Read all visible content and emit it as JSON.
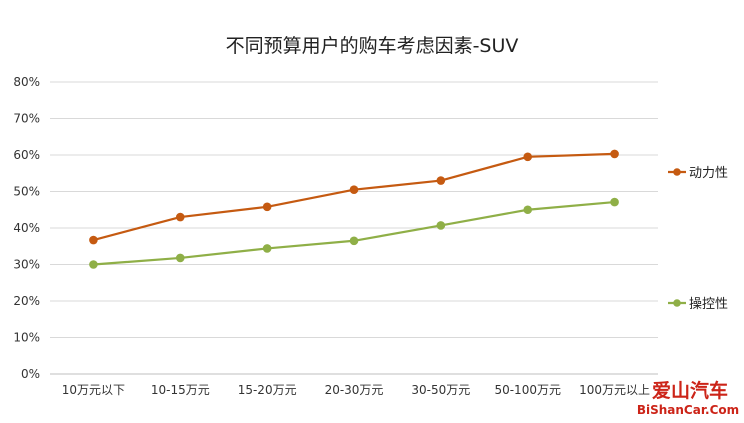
{
  "chart_data": {
    "type": "line",
    "title": "不同预算用户的购车考虑因素-SUV",
    "xlabel": "",
    "ylabel": "",
    "categories": [
      "10万元以下",
      "10-15万元",
      "15-20万元",
      "20-30万元",
      "30-50万元",
      "50-100万元",
      "100万元以上"
    ],
    "y_ticks": [
      "0%",
      "10%",
      "20%",
      "30%",
      "40%",
      "50%",
      "60%",
      "70%",
      "80%"
    ],
    "ylim": [
      0,
      80
    ],
    "grid": true,
    "legend_position": "right",
    "series": [
      {
        "name": "动力性",
        "color": "#c55a11",
        "values": [
          36.7,
          43.0,
          45.8,
          50.5,
          53.0,
          59.5,
          60.3
        ]
      },
      {
        "name": "操控性",
        "color": "#8faf47",
        "values": [
          30.0,
          31.8,
          34.4,
          36.5,
          40.7,
          45.0,
          47.1
        ]
      }
    ]
  },
  "watermark": {
    "logo_text": "爱山汽车",
    "site": "BiShanCar.Com"
  }
}
